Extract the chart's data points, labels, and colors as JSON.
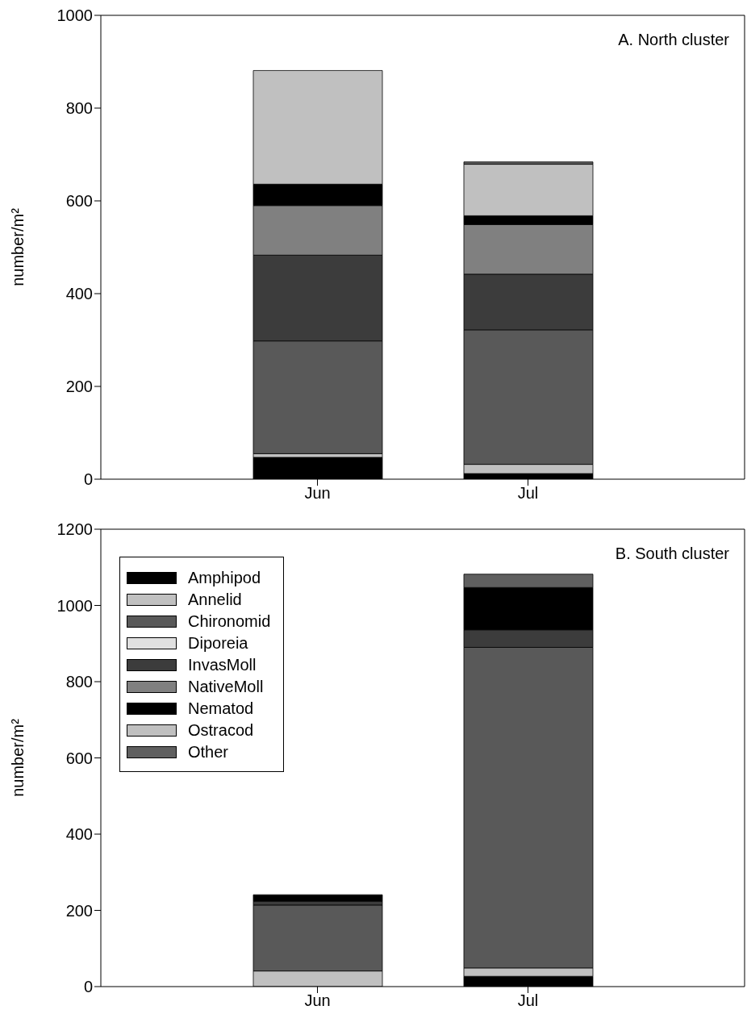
{
  "chart_data": [
    {
      "type": "bar",
      "title": "A. North cluster",
      "ylabel": "number/m²",
      "categories": [
        "Jun",
        "Jul"
      ],
      "stacked": true,
      "ylim": [
        0,
        1000
      ],
      "yticks": [
        0,
        200,
        400,
        600,
        800,
        1000
      ],
      "grid": false,
      "legend": false,
      "series": [
        {
          "color": "#000000",
          "values": [
            47,
            12
          ]
        },
        {
          "color": "#c0c0c0",
          "values": [
            8,
            20
          ]
        },
        {
          "color": "#595959",
          "values": [
            243,
            290
          ]
        },
        {
          "color": "#e0e0e0",
          "values": [
            0,
            0
          ]
        },
        {
          "color": "#3c3c3c",
          "values": [
            185,
            120
          ]
        },
        {
          "color": "#808080",
          "values": [
            107,
            107
          ]
        },
        {
          "color": "#000000",
          "values": [
            46,
            19
          ]
        },
        {
          "color": "#c0c0c0",
          "values": [
            245,
            111
          ]
        },
        {
          "color": "#5f5f5f",
          "values": [
            0,
            5
          ]
        }
      ]
    },
    {
      "type": "bar",
      "title": "B. South cluster",
      "ylabel": "number/m²",
      "categories": [
        "Jun",
        "Jul"
      ],
      "stacked": true,
      "ylim": [
        0,
        1200
      ],
      "yticks": [
        0,
        200,
        400,
        600,
        800,
        1000,
        1200
      ],
      "grid": false,
      "legend": "top left",
      "series": [
        {
          "name": "Amphipod",
          "color": "#000000",
          "values": [
            0,
            27
          ]
        },
        {
          "name": "Annelid",
          "color": "#c0c0c0",
          "values": [
            41,
            22
          ]
        },
        {
          "name": "Chironomid",
          "color": "#595959",
          "values": [
            173,
            841
          ]
        },
        {
          "name": "Diporeia",
          "color": "#e0e0e0",
          "values": [
            0,
            0
          ]
        },
        {
          "name": "InvasMoll",
          "color": "#3c3c3c",
          "values": [
            10,
            46
          ]
        },
        {
          "name": "NativeMoll",
          "color": "#808080",
          "values": [
            0,
            0
          ]
        },
        {
          "name": "Nematod",
          "color": "#000000",
          "values": [
            17,
            111
          ]
        },
        {
          "name": "Ostracod",
          "color": "#c0c0c0",
          "values": [
            0,
            0
          ]
        },
        {
          "name": "Other",
          "color": "#5f5f5f",
          "values": [
            0,
            35
          ]
        }
      ]
    }
  ]
}
